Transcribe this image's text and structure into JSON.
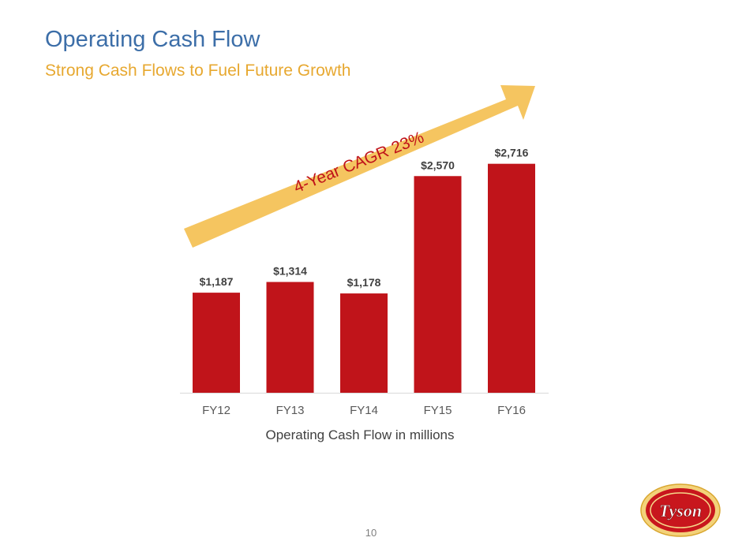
{
  "slide": {
    "title": "Operating Cash Flow",
    "subtitle": "Strong Cash Flows to Fuel Future Growth",
    "page_number": "10",
    "logo_text": "Tyson"
  },
  "colors": {
    "title": "#3c6ea8",
    "subtitle": "#e7a830",
    "bar": "#c0141a",
    "arrow": "#f5c560",
    "label": "#404040",
    "axis": "#d9d9d9"
  },
  "chart_data": {
    "type": "bar",
    "categories": [
      "FY12",
      "FY13",
      "FY14",
      "FY15",
      "FY16"
    ],
    "values": [
      1187,
      1314,
      1178,
      2570,
      2716
    ],
    "value_labels": [
      "$1,187",
      "$1,314",
      "$1,178",
      "$2,570",
      "$2,716"
    ],
    "xlabel": "Operating Cash Flow in millions",
    "ylim": [
      0,
      2900
    ],
    "grid": false,
    "legend": "none",
    "annotation": "4-Year CAGR 23%"
  }
}
